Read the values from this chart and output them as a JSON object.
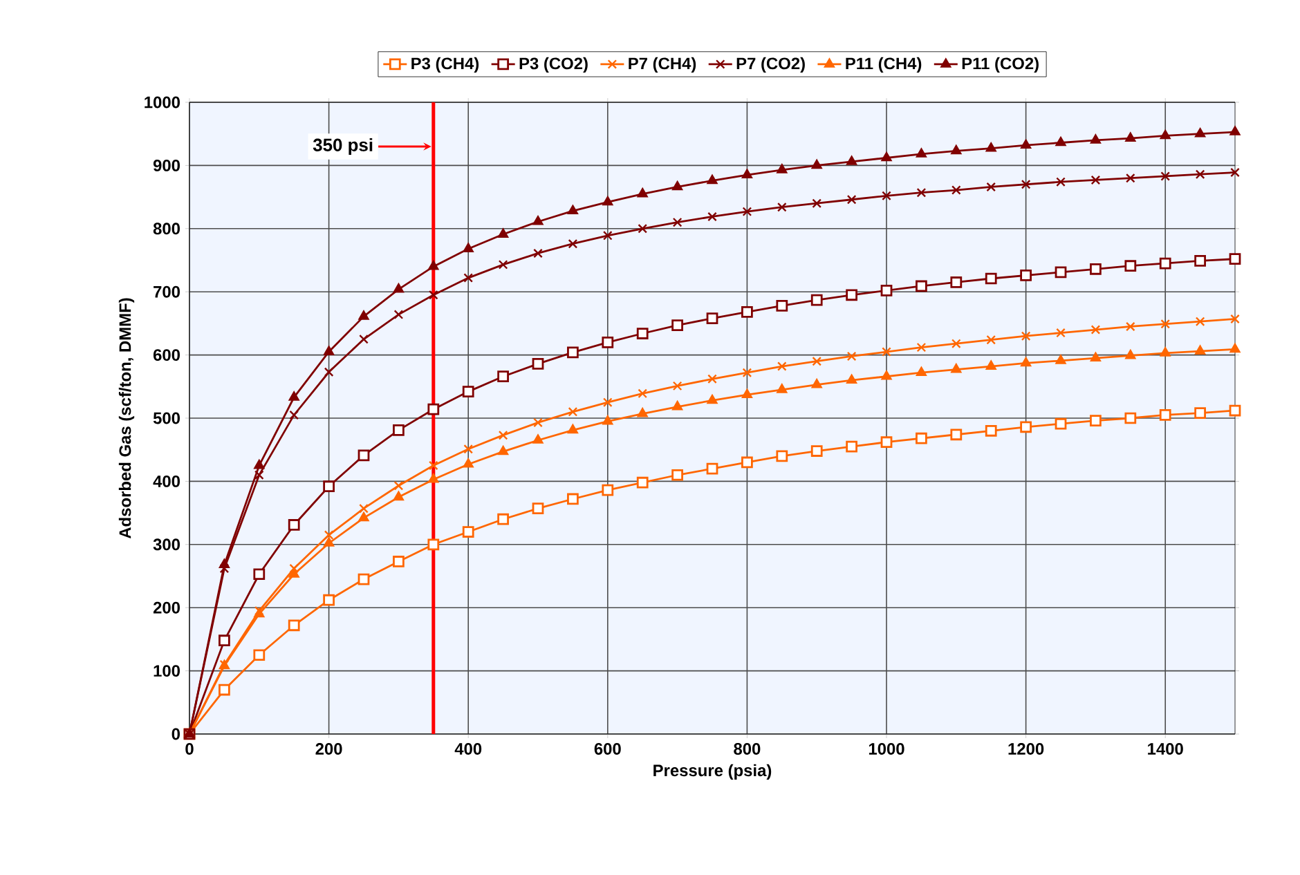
{
  "chart_data": {
    "type": "line",
    "xlabel": "Pressure (psia)",
    "ylabel": "Adsorbed Gas (scf/ton, DMMF)",
    "x": [
      0,
      50,
      100,
      150,
      200,
      250,
      300,
      350,
      400,
      450,
      500,
      550,
      600,
      650,
      700,
      750,
      800,
      850,
      900,
      950,
      1000,
      1050,
      1100,
      1150,
      1200,
      1250,
      1300,
      1350,
      1400,
      1450,
      1500
    ],
    "series": [
      {
        "name": "P3 (CH4)",
        "color": "#ff6600",
        "marker": "square",
        "values": [
          0,
          70,
          125,
          172,
          212,
          245,
          273,
          300,
          320,
          340,
          357,
          372,
          386,
          398,
          410,
          420,
          430,
          440,
          448,
          455,
          462,
          468,
          474,
          480,
          486,
          491,
          496,
          500,
          505,
          508,
          512
        ]
      },
      {
        "name": "P3 (CO2)",
        "color": "#800000",
        "marker": "square",
        "values": [
          0,
          148,
          253,
          331,
          392,
          441,
          481,
          514,
          542,
          566,
          586,
          604,
          620,
          634,
          647,
          658,
          668,
          678,
          687,
          695,
          702,
          709,
          715,
          721,
          726,
          731,
          736,
          741,
          745,
          749,
          752
        ]
      },
      {
        "name": "P7 (CH4)",
        "color": "#ff6600",
        "marker": "cross",
        "values": [
          0,
          110,
          195,
          262,
          315,
          357,
          393,
          425,
          451,
          473,
          493,
          510,
          525,
          539,
          551,
          562,
          572,
          582,
          590,
          598,
          605,
          612,
          618,
          624,
          630,
          635,
          640,
          645,
          649,
          653,
          657
        ]
      },
      {
        "name": "P7 (CO2)",
        "color": "#800000",
        "marker": "cross",
        "values": [
          0,
          262,
          410,
          505,
          573,
          625,
          664,
          695,
          722,
          743,
          761,
          776,
          789,
          800,
          810,
          819,
          827,
          834,
          840,
          846,
          852,
          857,
          861,
          866,
          870,
          874,
          877,
          880,
          883,
          886,
          889
        ]
      },
      {
        "name": "P11 (CH4)",
        "color": "#ff6600",
        "marker": "triangle",
        "values": [
          0,
          108,
          190,
          253,
          302,
          342,
          375,
          403,
          427,
          447,
          465,
          481,
          495,
          507,
          518,
          528,
          537,
          545,
          553,
          560,
          566,
          572,
          577,
          582,
          587,
          591,
          595,
          599,
          603,
          606,
          609
        ]
      },
      {
        "name": "P11 (CO2)",
        "color": "#800000",
        "marker": "triangle",
        "values": [
          0,
          268,
          425,
          533,
          605,
          661,
          704,
          740,
          768,
          791,
          811,
          828,
          842,
          855,
          866,
          876,
          885,
          893,
          900,
          906,
          912,
          918,
          923,
          927,
          932,
          936,
          940,
          943,
          947,
          950,
          953
        ]
      }
    ],
    "xlim": [
      0,
      1500
    ],
    "xticks": [
      0,
      200,
      400,
      600,
      800,
      1000,
      1200,
      1400
    ],
    "ylim": [
      0,
      1000
    ],
    "yticks": [
      0,
      100,
      200,
      300,
      400,
      500,
      600,
      700,
      800,
      900,
      1000
    ],
    "grid": true,
    "legend": "top",
    "ref_lines": [
      {
        "axis": "x",
        "value": 350,
        "label": "350 psi",
        "color": "#ff0000"
      }
    ]
  }
}
